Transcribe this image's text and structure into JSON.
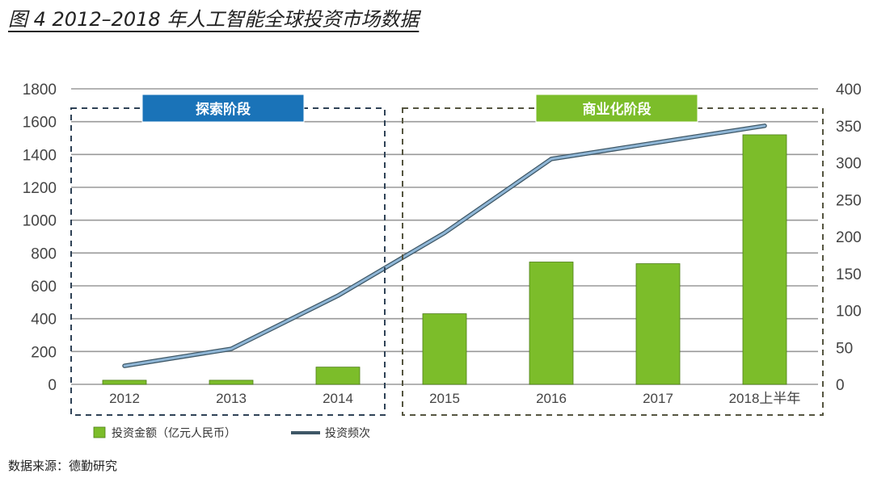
{
  "title": "图 4 2012–2018 年人工智能全球投资市场数据",
  "source": "数据来源：德勤研究",
  "colors": {
    "bar": "#7cbd2a",
    "line": "#8fb6d6",
    "line_outline": "#3e5766",
    "stage1": "#1a73b8",
    "stage2": "#7cbd2a",
    "grid": "#9a9a9a",
    "axis_text": "#444444"
  },
  "chart_data": {
    "type": "bar+line",
    "categories": [
      "2012",
      "2013",
      "2014",
      "2015",
      "2016",
      "2017",
      "2018上半年"
    ],
    "series": [
      {
        "name": "投资金额（亿元人民币）",
        "type": "bar",
        "axis": "left",
        "values": [
          25,
          25,
          105,
          430,
          745,
          735,
          1520
        ]
      },
      {
        "name": "投资频次",
        "type": "line",
        "axis": "right",
        "values": [
          25,
          48,
          120,
          205,
          305,
          null,
          350
        ]
      }
    ],
    "left_axis": {
      "ylim": [
        0,
        1800
      ],
      "ticks": [
        0,
        200,
        400,
        600,
        800,
        1000,
        1200,
        1400,
        1600,
        1800
      ]
    },
    "right_axis": {
      "ylim": [
        0,
        400
      ],
      "ticks": [
        0,
        50,
        100,
        150,
        200,
        250,
        300,
        350,
        400
      ]
    },
    "grid": true,
    "legend_position": "bottom-left",
    "stages": [
      {
        "label": "探索阶段",
        "range": [
          "2012",
          "2014"
        ]
      },
      {
        "label": "商业化阶段",
        "range": [
          "2015",
          "2018上半年"
        ]
      }
    ]
  }
}
